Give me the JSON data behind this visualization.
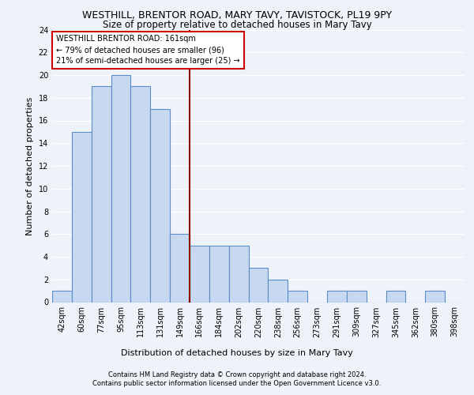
{
  "title1": "WESTHILL, BRENTOR ROAD, MARY TAVY, TAVISTOCK, PL19 9PY",
  "title2": "Size of property relative to detached houses in Mary Tavy",
  "xlabel": "Distribution of detached houses by size in Mary Tavy",
  "ylabel": "Number of detached properties",
  "bin_labels": [
    "42sqm",
    "60sqm",
    "77sqm",
    "95sqm",
    "113sqm",
    "131sqm",
    "149sqm",
    "166sqm",
    "184sqm",
    "202sqm",
    "220sqm",
    "238sqm",
    "256sqm",
    "273sqm",
    "291sqm",
    "309sqm",
    "327sqm",
    "345sqm",
    "362sqm",
    "380sqm",
    "398sqm"
  ],
  "bar_heights": [
    1,
    15,
    19,
    20,
    19,
    17,
    6,
    5,
    5,
    5,
    3,
    2,
    1,
    0,
    1,
    1,
    0,
    1,
    0,
    1,
    0
  ],
  "bar_color": "#c6d9f0",
  "bar_edgecolor": "#5b8cc8",
  "bar_linewidth": 0.8,
  "vline_pos": 6.5,
  "vline_color": "#8b0000",
  "annotation_line1": "WESTHILL BRENTOR ROAD: 161sqm",
  "annotation_line2": "← 79% of detached houses are smaller (96)",
  "annotation_line3": "21% of semi-detached houses are larger (25) →",
  "annotation_box_color": "white",
  "annotation_box_edgecolor": "#cc0000",
  "ylim": [
    0,
    24
  ],
  "yticks": [
    0,
    2,
    4,
    6,
    8,
    10,
    12,
    14,
    16,
    18,
    20,
    22,
    24
  ],
  "footer1": "Contains HM Land Registry data © Crown copyright and database right 2024.",
  "footer2": "Contains public sector information licensed under the Open Government Licence v3.0.",
  "bg_color": "#eef2f9",
  "grid_color": "#ffffff",
  "title_fontsize": 9,
  "subtitle_fontsize": 8.5,
  "axis_label_fontsize": 8,
  "tick_fontsize": 7,
  "annotation_fontsize": 7,
  "footer_fontsize": 6
}
